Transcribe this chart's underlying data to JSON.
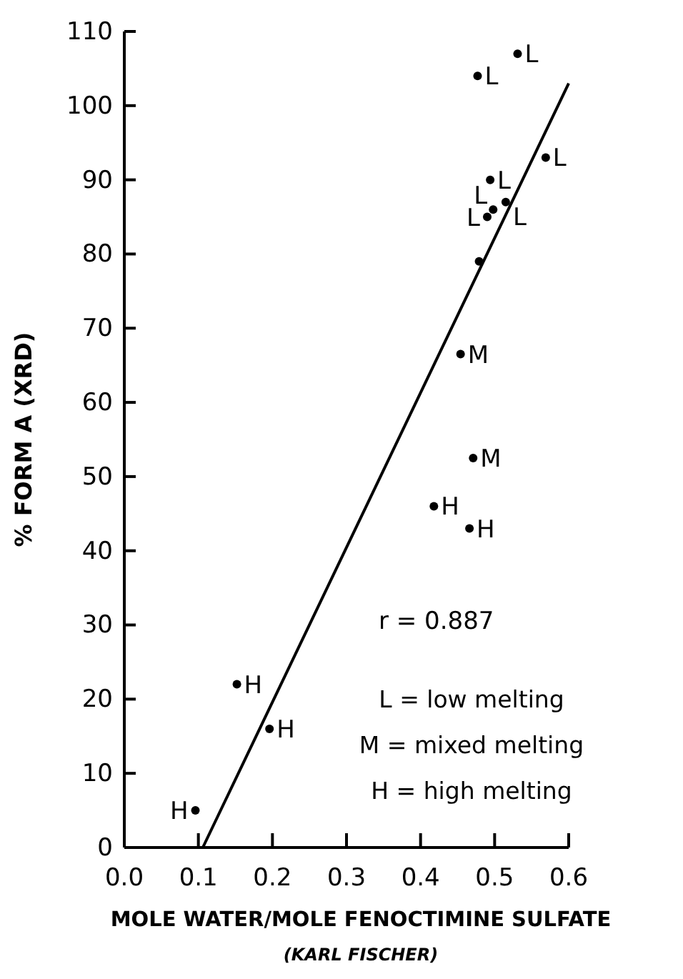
{
  "chart_data": {
    "type": "scatter",
    "xlabel": "MOLE WATER/MOLE FENOCTIMINE SULFATE",
    "ylabel": "% FORM A (XRD)",
    "xlim": [
      0,
      0.6
    ],
    "ylim": [
      0,
      110
    ],
    "xticks": [
      {
        "value": 0,
        "label": "0.0"
      },
      {
        "value": 0.1,
        "label": "0.1"
      },
      {
        "value": 0.2,
        "label": "0.2"
      },
      {
        "value": 0.3,
        "label": "0.3"
      },
      {
        "value": 0.4,
        "label": "0.4"
      },
      {
        "value": 0.5,
        "label": "0.5"
      },
      {
        "value": 0.6,
        "label": "0.6"
      }
    ],
    "yticks": [
      0,
      10,
      20,
      30,
      40,
      50,
      60,
      70,
      80,
      90,
      100,
      110
    ],
    "grid": false,
    "series": [
      {
        "marker": "circle",
        "color": "#000000",
        "x": [
          0.477,
          0.531,
          0.569,
          0.494,
          0.498,
          0.49,
          0.515,
          0.479,
          0.454,
          0.471,
          0.418,
          0.466,
          0.152,
          0.196,
          0.096
        ],
        "values": [
          104,
          107,
          93,
          90,
          86,
          85,
          87,
          79,
          66.5,
          52.5,
          46,
          43,
          22,
          16,
          5
        ],
        "value_labels": [
          "L",
          "L",
          "L",
          "L",
          "L",
          "L",
          "L",
          null,
          "M",
          "M",
          "H",
          "H",
          "H",
          "H",
          "H"
        ]
      },
      {
        "type": "line",
        "color": "#000000",
        "x": [
          0.106,
          0.6
        ],
        "values": [
          0,
          103
        ],
        "line_style": "solid"
      }
    ],
    "annotations": [
      "r = 0.887",
      "L = low melting",
      "M = mixed melting",
      "H = high melting",
      "(KARL FISCHER)"
    ]
  }
}
